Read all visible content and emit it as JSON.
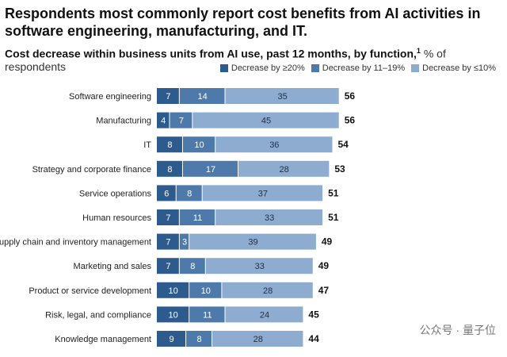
{
  "chart_data": {
    "type": "bar",
    "orientation": "horizontal-stacked",
    "title": "Respondents most commonly report cost benefits from AI activities in software engineering, manufacturing, and IT.",
    "subtitle": "Cost decrease within business units from AI use, past 12 months, by function,",
    "footnote_mark": "1",
    "unit": "% of respondents",
    "legend_position": "top-right",
    "categories": [
      "Software engineering",
      "Manufacturing",
      "IT",
      "Strategy and corporate finance",
      "Service operations",
      "Human resources",
      "Supply chain and inventory management",
      "Marketing and sales",
      "Product or service development",
      "Risk, legal, and compliance",
      "Knowledge management"
    ],
    "series": [
      {
        "name": "Decrease by ≥20%",
        "color": "#2e5b8e",
        "values": [
          7,
          4,
          8,
          8,
          6,
          7,
          7,
          7,
          10,
          10,
          9
        ]
      },
      {
        "name": "Decrease by 11–19%",
        "color": "#4d7aab",
        "values": [
          14,
          7,
          10,
          17,
          8,
          11,
          3,
          8,
          10,
          11,
          8
        ]
      },
      {
        "name": "Decrease by ≤10%",
        "color": "#8eabd0",
        "values": [
          35,
          45,
          36,
          28,
          37,
          33,
          39,
          33,
          28,
          24,
          28
        ]
      }
    ],
    "totals": [
      56,
      56,
      54,
      53,
      51,
      51,
      49,
      49,
      47,
      45,
      44
    ],
    "grid": false
  },
  "watermark": "公众号 · 量子位"
}
